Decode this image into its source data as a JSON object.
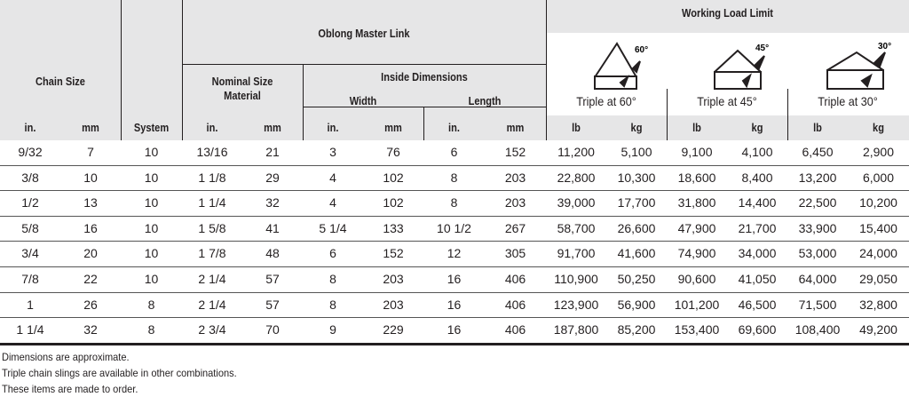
{
  "header": {
    "chain_size": "Chain Size",
    "system": "System",
    "oblong_master_link": "Oblong Master Link",
    "nominal_size_material": "Nominal Size Material",
    "inside_dimensions": "Inside Dimensions",
    "width": "Width",
    "length": "Length",
    "working_load_limit": "Working Load Limit",
    "angles": [
      {
        "degree_label": "60°",
        "caption": "Triple at 60°"
      },
      {
        "degree_label": "45°",
        "caption": "Triple at 45°"
      },
      {
        "degree_label": "30°",
        "caption": "Triple at 30°"
      }
    ],
    "units": [
      "in.",
      "mm",
      "System",
      "in.",
      "mm",
      "in.",
      "mm",
      "in.",
      "mm",
      "lb",
      "kg",
      "lb",
      "kg",
      "lb",
      "kg"
    ]
  },
  "rows": [
    [
      "9/32",
      "7",
      "10",
      "13/16",
      "21",
      "3",
      "76",
      "6",
      "152",
      "11,200",
      "5,100",
      "9,100",
      "4,100",
      "6,450",
      "2,900"
    ],
    [
      "3/8",
      "10",
      "10",
      "1 1/8",
      "29",
      "4",
      "102",
      "8",
      "203",
      "22,800",
      "10,300",
      "18,600",
      "8,400",
      "13,200",
      "6,000"
    ],
    [
      "1/2",
      "13",
      "10",
      "1 1/4",
      "32",
      "4",
      "102",
      "8",
      "203",
      "39,000",
      "17,700",
      "31,800",
      "14,400",
      "22,500",
      "10,200"
    ],
    [
      "5/8",
      "16",
      "10",
      "1 5/8",
      "41",
      "5 1/4",
      "133",
      "10 1/2",
      "267",
      "58,700",
      "26,600",
      "47,900",
      "21,700",
      "33,900",
      "15,400"
    ],
    [
      "3/4",
      "20",
      "10",
      "1 7/8",
      "48",
      "6",
      "152",
      "12",
      "305",
      "91,700",
      "41,600",
      "74,900",
      "34,000",
      "53,000",
      "24,000"
    ],
    [
      "7/8",
      "22",
      "10",
      "2 1/4",
      "57",
      "8",
      "203",
      "16",
      "406",
      "110,900",
      "50,250",
      "90,600",
      "41,050",
      "64,000",
      "29,050"
    ],
    [
      "1",
      "26",
      "8",
      "2 1/4",
      "57",
      "8",
      "203",
      "16",
      "406",
      "123,900",
      "56,900",
      "101,200",
      "46,500",
      "71,500",
      "32,800"
    ],
    [
      "1 1/4",
      "32",
      "8",
      "2 3/4",
      "70",
      "9",
      "229",
      "16",
      "406",
      "187,800",
      "85,200",
      "153,400",
      "69,600",
      "108,400",
      "49,200"
    ]
  ],
  "notes": [
    "Dimensions are approximate.",
    "Triple chain slings are available in other combinations.",
    "These items are made to order."
  ]
}
